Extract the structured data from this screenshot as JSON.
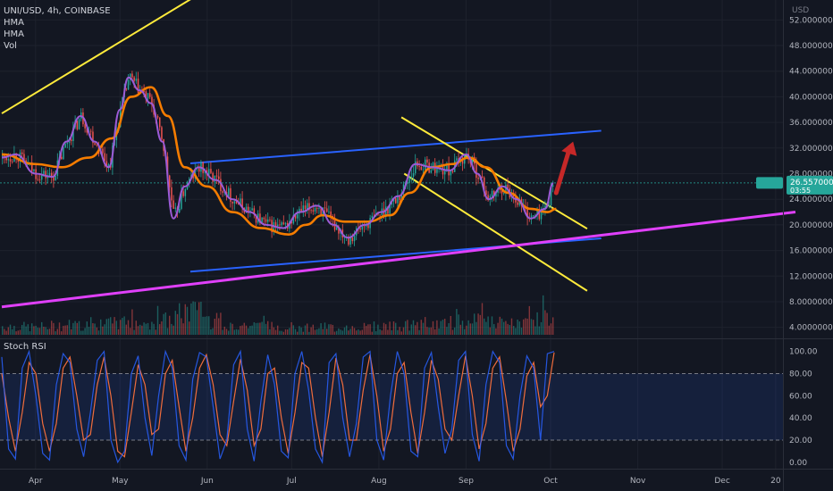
{
  "header": {
    "symbol_line": "UNI/USD, 4h, COINBASE",
    "indicators": [
      "HMA",
      "HMA",
      "Vol"
    ],
    "currency": "USD"
  },
  "oscillator": {
    "label": "Stoch RSI"
  },
  "colors": {
    "background": "#131722",
    "up": "#26a69a",
    "down": "#ef5350",
    "hma_fast": "#9c5bd6",
    "hma_slow": "#f57c00",
    "trend_yellow": "#ffeb3b",
    "channel_blue": "#2962ff",
    "support_magenta": "#e040fb",
    "arrow": "#c62828",
    "stoch_k": "#2962ff",
    "stoch_d": "#ef6c3c",
    "price_badge": "#26a69a"
  },
  "price_badge": {
    "value": "26.55700000",
    "sub": "03:55"
  },
  "current_price": 26.56,
  "chart_data": [
    {
      "type": "line",
      "pane": "price",
      "title": "UNI/USD, 4h, COINBASE",
      "x_ticks": [
        "Apr",
        "May",
        "Jun",
        "Jul",
        "Aug",
        "Sep",
        "Oct",
        "Nov",
        "Dec",
        "20"
      ],
      "y_ticks": [
        "4.00000000",
        "8.00000000",
        "12.00000000",
        "16.00000000",
        "20.00000000",
        "24.00000000",
        "28.00000000",
        "32.00000000",
        "36.00000000",
        "40.00000000",
        "44.00000000",
        "48.00000000",
        "52.00000000"
      ],
      "ylim": [
        2,
        54
      ],
      "series": [
        {
          "name": "HMA",
          "x": [
            "2021-03-20",
            "2021-03-25",
            "2021-04-01",
            "2021-04-07",
            "2021-04-12",
            "2021-04-17",
            "2021-04-22",
            "2021-04-27",
            "2021-05-01",
            "2021-05-04",
            "2021-05-08",
            "2021-05-12",
            "2021-05-16",
            "2021-05-20",
            "2021-05-24",
            "2021-05-29",
            "2021-06-04",
            "2021-06-10",
            "2021-06-16",
            "2021-06-22",
            "2021-06-28",
            "2021-07-04",
            "2021-07-10",
            "2021-07-16",
            "2021-07-21",
            "2021-07-27",
            "2021-08-02",
            "2021-08-08",
            "2021-08-14",
            "2021-08-20",
            "2021-08-26",
            "2021-09-01",
            "2021-09-05",
            "2021-09-09",
            "2021-09-14",
            "2021-09-19",
            "2021-09-24",
            "2021-09-29",
            "2021-10-02"
          ],
          "values": [
            30.5,
            31,
            28,
            27.5,
            33,
            37,
            33,
            29,
            38,
            43,
            41,
            39,
            33,
            21,
            26,
            29,
            27,
            24,
            22,
            20,
            19.5,
            22,
            23,
            20,
            18,
            20,
            22,
            24.5,
            29.5,
            29,
            28.5,
            31,
            28,
            24,
            26,
            24,
            21,
            22.5,
            26.5
          ]
        },
        {
          "name": "HMA",
          "x": [
            "2021-03-20",
            "2021-04-01",
            "2021-04-10",
            "2021-04-20",
            "2021-04-28",
            "2021-05-05",
            "2021-05-12",
            "2021-05-18",
            "2021-05-24",
            "2021-06-01",
            "2021-06-10",
            "2021-06-20",
            "2021-06-30",
            "2021-07-06",
            "2021-07-12",
            "2021-07-20",
            "2021-07-28",
            "2021-08-05",
            "2021-08-12",
            "2021-08-20",
            "2021-08-27",
            "2021-09-02",
            "2021-09-08",
            "2021-09-16",
            "2021-09-24",
            "2021-09-30",
            "2021-10-03"
          ],
          "values": [
            31,
            29.5,
            29,
            30.5,
            33.5,
            40,
            41.5,
            37,
            29,
            26,
            22,
            19.5,
            18.5,
            20,
            21.5,
            20.5,
            20.5,
            21.5,
            25,
            29,
            29.5,
            30.5,
            29,
            25,
            22.5,
            22,
            22.5
          ]
        }
      ],
      "annotations": [
        {
          "name": "upper yellow trendline",
          "points": [
            [
              "2021-03-20",
              37.4
            ],
            [
              "2021-06-07",
              58.4
            ]
          ]
        },
        {
          "name": "upper blue channel line",
          "points": [
            [
              "2021-05-26",
              29.6
            ],
            [
              "2021-10-19",
              34.7
            ]
          ]
        },
        {
          "name": "lower blue channel line",
          "points": [
            [
              "2021-05-26",
              12.7
            ],
            [
              "2021-10-19",
              17.9
            ]
          ]
        },
        {
          "name": "upper yellow wedge line",
          "points": [
            [
              "2021-08-09",
              36.8
            ],
            [
              "2021-10-14",
              19.4
            ]
          ]
        },
        {
          "name": "lower yellow wedge line",
          "points": [
            [
              "2021-08-10",
              28.0
            ],
            [
              "2021-10-14",
              9.7
            ]
          ]
        },
        {
          "name": "magenta support line",
          "points": [
            [
              "2021-03-20",
              7.2
            ],
            [
              "2021-12-27",
              22.0
            ]
          ]
        },
        {
          "name": "red up arrow",
          "points": [
            [
              "2021-10-03",
              25.0
            ],
            [
              "2021-10-09",
              33.0
            ]
          ]
        }
      ]
    },
    {
      "type": "bar",
      "pane": "volume",
      "series_name": "Vol",
      "x": [
        "2021-03-20",
        "2021-04-01",
        "2021-04-12",
        "2021-04-22",
        "2021-05-01",
        "2021-05-10",
        "2021-05-19",
        "2021-05-25",
        "2021-06-05",
        "2021-06-20",
        "2021-07-05",
        "2021-07-20",
        "2021-08-05",
        "2021-08-20",
        "2021-09-01",
        "2021-09-08",
        "2021-09-20",
        "2021-09-28",
        "2021-10-02"
      ],
      "values": [
        0.35,
        0.3,
        0.4,
        0.35,
        0.5,
        0.45,
        0.6,
        1.0,
        0.45,
        0.35,
        0.3,
        0.3,
        0.35,
        0.4,
        0.55,
        0.5,
        0.4,
        0.65,
        0.45
      ]
    },
    {
      "type": "line",
      "pane": "oscillator",
      "title": "Stoch RSI",
      "y_ticks": [
        "0.00",
        "20.00",
        "40.00",
        "60.00",
        "80.00",
        "100.00"
      ],
      "ylim": [
        -5,
        107
      ],
      "bands": [
        20,
        80
      ],
      "series": [
        {
          "name": "K",
          "values": [
            95,
            12,
            3,
            85,
            100,
            60,
            8,
            2,
            70,
            98,
            90,
            30,
            5,
            45,
            92,
            100,
            20,
            0,
            10,
            80,
            96,
            40,
            6,
            60,
            100,
            85,
            15,
            2,
            75,
            99,
            95,
            50,
            3,
            20,
            88,
            100,
            30,
            1,
            55,
            97,
            70,
            10,
            4,
            80,
            100,
            65,
            12,
            0,
            90,
            98,
            40,
            5,
            35,
            95,
            100,
            20,
            2,
            60,
            100,
            80,
            10,
            5,
            85,
            99,
            50,
            8,
            30,
            92,
            100,
            25,
            1,
            70,
            100,
            90,
            15,
            3,
            60,
            96,
            85,
            20,
            98,
            100
          ]
        },
        {
          "name": "D",
          "values": [
            80,
            40,
            10,
            45,
            90,
            80,
            35,
            10,
            35,
            85,
            95,
            60,
            20,
            25,
            70,
            95,
            60,
            10,
            5,
            45,
            88,
            70,
            25,
            30,
            80,
            92,
            50,
            10,
            40,
            85,
            97,
            70,
            25,
            15,
            55,
            93,
            65,
            15,
            30,
            80,
            85,
            40,
            8,
            45,
            90,
            85,
            40,
            5,
            45,
            94,
            70,
            20,
            20,
            65,
            97,
            60,
            10,
            30,
            80,
            90,
            45,
            8,
            45,
            92,
            75,
            30,
            20,
            60,
            96,
            60,
            12,
            35,
            85,
            95,
            55,
            10,
            30,
            78,
            90,
            50,
            60,
            99
          ]
        }
      ],
      "x_range": [
        "2021-03-20",
        "2021-10-03"
      ]
    }
  ],
  "time_axis": {
    "labels": [
      {
        "label": "Apr",
        "date": "2021-04-01"
      },
      {
        "label": "May",
        "date": "2021-05-01"
      },
      {
        "label": "Jun",
        "date": "2021-06-01"
      },
      {
        "label": "Jul",
        "date": "2021-07-01"
      },
      {
        "label": "Aug",
        "date": "2021-08-01"
      },
      {
        "label": "Sep",
        "date": "2021-09-01"
      },
      {
        "label": "Oct",
        "date": "2021-10-01"
      },
      {
        "label": "Nov",
        "date": "2021-11-01"
      },
      {
        "label": "Dec",
        "date": "2021-12-01"
      },
      {
        "label": "20",
        "date": "2021-12-20"
      }
    ]
  }
}
